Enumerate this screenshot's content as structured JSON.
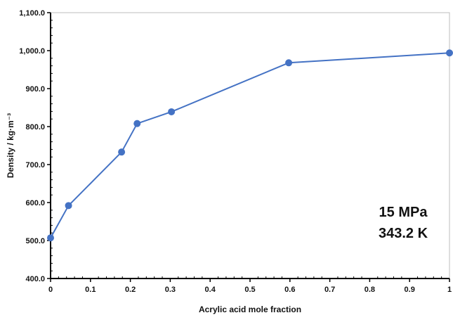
{
  "chart_data": {
    "type": "line",
    "title": "",
    "xlabel": "Acrylic acid mole fraction",
    "ylabel": "Density / kg·m⁻³",
    "xlim": [
      0,
      1
    ],
    "ylim": [
      400,
      1100
    ],
    "x_ticks": [
      0,
      0.1,
      0.2,
      0.3,
      0.4,
      0.5,
      0.6,
      0.7,
      0.8,
      0.9,
      1
    ],
    "x_tick_labels": [
      "0",
      "0.1",
      "0.2",
      "0.3",
      "0.4",
      "0.5",
      "0.6",
      "0.7",
      "0.8",
      "0.9",
      "1"
    ],
    "y_ticks": [
      400,
      500,
      600,
      700,
      800,
      900,
      1000,
      1100
    ],
    "y_tick_labels": [
      "400.0",
      "500.0",
      "600.0",
      "700.0",
      "800.0",
      "900.0",
      "1,000.0",
      "1,100.0"
    ],
    "grid": false,
    "series": [
      {
        "color": "#4472C4",
        "x": [
          0,
          0.045,
          0.178,
          0.217,
          0.303,
          0.597,
          1
        ],
        "y": [
          507,
          592,
          733,
          808,
          839,
          968,
          994
        ]
      }
    ],
    "annotations": [
      {
        "text": "15 MPa"
      },
      {
        "text": "343.2 K"
      }
    ]
  }
}
